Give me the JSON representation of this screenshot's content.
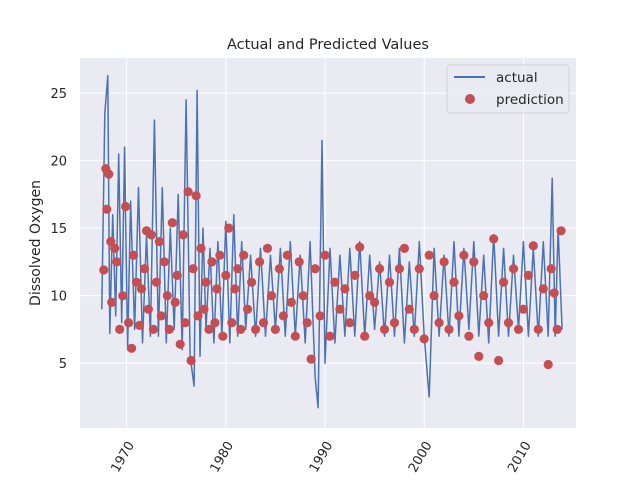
{
  "chart_data": {
    "type": "line",
    "title": "Actual and Predicted Values",
    "xlabel": "",
    "ylabel": "Dissolved Oxygen",
    "xlim": [
      1965.3,
      2015.3
    ],
    "ylim": [
      0.2,
      27.6
    ],
    "x_ticks": [
      1970,
      1980,
      1990,
      2000,
      2010
    ],
    "x_tick_labels": [
      "1970",
      "1980",
      "1990",
      "2000",
      "2010"
    ],
    "y_ticks": [
      5,
      10,
      15,
      20,
      25
    ],
    "y_tick_labels": [
      "5",
      "10",
      "15",
      "20",
      "25"
    ],
    "grid": true,
    "legend_position": "top-right",
    "series": [
      {
        "name": "actual",
        "kind": "line",
        "color": "#4c72b0",
        "x": [
          1967.5,
          1967.8,
          1968.1,
          1968.3,
          1968.6,
          1968.9,
          1969.2,
          1969.5,
          1969.8,
          1970.1,
          1970.4,
          1970.8,
          1971.2,
          1971.6,
          1972.0,
          1972.4,
          1972.8,
          1973.2,
          1973.6,
          1974.0,
          1974.4,
          1974.8,
          1975.2,
          1975.6,
          1976.0,
          1976.4,
          1976.8,
          1977.1,
          1977.4,
          1977.7,
          1978.0,
          1978.4,
          1978.8,
          1979.2,
          1979.6,
          1980.0,
          1980.4,
          1980.8,
          1981.2,
          1981.6,
          1982.0,
          1982.5,
          1983.0,
          1983.5,
          1984.0,
          1984.5,
          1985.0,
          1985.5,
          1986.0,
          1986.5,
          1987.0,
          1987.5,
          1988.0,
          1988.5,
          1989.0,
          1989.3,
          1989.7,
          1990.0,
          1990.5,
          1991.0,
          1991.5,
          1992.0,
          1992.5,
          1993.0,
          1993.5,
          1994.0,
          1994.5,
          1995.0,
          1995.5,
          1996.0,
          1996.5,
          1997.0,
          1997.5,
          1998.0,
          1998.5,
          1999.0,
          1999.5,
          2000.0,
          2000.5,
          2001.0,
          2001.5,
          2002.0,
          2002.5,
          2003.0,
          2003.5,
          2004.0,
          2004.5,
          2005.0,
          2005.5,
          2006.0,
          2006.5,
          2007.0,
          2007.5,
          2008.0,
          2008.5,
          2009.0,
          2009.5,
          2010.0,
          2010.5,
          2011.0,
          2011.5,
          2012.0,
          2012.5,
          2012.9,
          2013.2,
          2013.5,
          2013.9
        ],
        "y": [
          9.0,
          23.5,
          26.3,
          7.2,
          16.0,
          8.5,
          20.5,
          8.0,
          21.0,
          6.0,
          17.0,
          7.5,
          18.0,
          6.5,
          14.5,
          7.0,
          23.0,
          7.0,
          18.0,
          6.5,
          15.0,
          7.5,
          17.5,
          6.0,
          24.5,
          5.5,
          3.3,
          25.2,
          5.5,
          15.0,
          7.5,
          13.5,
          6.5,
          14.0,
          7.0,
          15.5,
          6.5,
          16.0,
          7.0,
          14.0,
          7.5,
          13.0,
          7.0,
          13.5,
          7.0,
          13.0,
          7.5,
          13.5,
          7.0,
          14.0,
          7.0,
          13.0,
          6.5,
          14.0,
          4.0,
          1.7,
          21.5,
          5.0,
          13.5,
          6.5,
          13.0,
          7.0,
          13.5,
          7.0,
          14.0,
          7.0,
          13.0,
          7.5,
          12.5,
          7.0,
          13.0,
          7.0,
          13.5,
          6.5,
          12.5,
          7.0,
          14.0,
          7.0,
          2.5,
          13.5,
          7.0,
          13.0,
          7.0,
          14.0,
          7.0,
          13.5,
          7.5,
          14.0,
          7.0,
          13.0,
          6.5,
          14.5,
          7.0,
          13.5,
          7.0,
          13.0,
          7.5,
          14.0,
          7.0,
          13.5,
          7.0,
          14.0,
          7.0,
          18.7,
          7.0,
          15.0,
          7.5
        ]
      },
      {
        "name": "prediction",
        "kind": "scatter",
        "color": "#c44e52",
        "x": [
          1967.7,
          1967.9,
          1968.0,
          1968.2,
          1968.4,
          1968.5,
          1968.8,
          1969.0,
          1969.3,
          1969.6,
          1969.9,
          1970.2,
          1970.5,
          1970.7,
          1971.0,
          1971.3,
          1971.5,
          1971.8,
          1972.0,
          1972.2,
          1972.5,
          1972.7,
          1973.0,
          1973.3,
          1973.5,
          1973.8,
          1974.1,
          1974.3,
          1974.6,
          1974.9,
          1975.1,
          1975.4,
          1975.7,
          1975.9,
          1976.2,
          1976.5,
          1976.7,
          1977.0,
          1977.2,
          1977.5,
          1977.8,
          1978.0,
          1978.3,
          1978.6,
          1978.9,
          1979.1,
          1979.4,
          1979.7,
          1980.0,
          1980.3,
          1980.6,
          1980.9,
          1981.2,
          1981.5,
          1981.8,
          1982.2,
          1982.6,
          1983.0,
          1983.4,
          1983.8,
          1984.2,
          1984.6,
          1985.0,
          1985.4,
          1985.8,
          1986.2,
          1986.6,
          1987.0,
          1987.4,
          1987.8,
          1988.2,
          1988.6,
          1989.0,
          1989.5,
          1990.0,
          1990.5,
          1991.0,
          1991.5,
          1992.0,
          1992.5,
          1993.0,
          1993.5,
          1994.0,
          1994.5,
          1995.0,
          1995.5,
          1996.0,
          1996.5,
          1997.0,
          1997.5,
          1998.0,
          1998.5,
          1999.0,
          1999.5,
          2000.0,
          2000.5,
          2001.0,
          2001.5,
          2002.0,
          2002.5,
          2003.0,
          2003.5,
          2004.0,
          2004.5,
          2005.0,
          2005.5,
          2006.0,
          2006.5,
          2007.0,
          2007.5,
          2008.0,
          2008.5,
          2009.0,
          2009.5,
          2010.0,
          2010.5,
          2011.0,
          2011.5,
          2012.0,
          2012.5,
          2012.8,
          2013.1,
          2013.4,
          2013.8
        ],
        "y": [
          11.9,
          19.4,
          16.4,
          19.0,
          14.0,
          9.5,
          13.5,
          12.5,
          7.5,
          10.0,
          16.6,
          8.0,
          6.1,
          13.0,
          11.0,
          7.8,
          10.5,
          12.0,
          14.8,
          9.0,
          14.5,
          7.5,
          11.0,
          14.0,
          8.5,
          12.5,
          10.0,
          7.5,
          15.4,
          9.5,
          11.5,
          6.4,
          14.5,
          8.0,
          17.7,
          5.2,
          12.0,
          17.4,
          8.5,
          13.5,
          9.0,
          11.0,
          7.5,
          12.5,
          8.0,
          10.5,
          13.0,
          7.0,
          11.5,
          15.0,
          8.0,
          10.5,
          12.0,
          7.5,
          13.0,
          9.0,
          11.0,
          7.5,
          12.5,
          8.0,
          13.5,
          10.0,
          7.5,
          12.0,
          8.5,
          13.0,
          9.5,
          7.0,
          12.5,
          10.0,
          8.0,
          5.3,
          12.0,
          8.5,
          13.0,
          7.0,
          11.0,
          9.0,
          10.5,
          8.0,
          11.5,
          13.6,
          7.0,
          10.0,
          9.5,
          12.0,
          7.5,
          11.0,
          8.0,
          12.0,
          13.5,
          9.0,
          7.5,
          12.0,
          6.8,
          13.0,
          10.0,
          8.0,
          12.5,
          7.5,
          11.0,
          8.5,
          13.0,
          7.0,
          12.5,
          5.5,
          10.0,
          8.0,
          14.2,
          5.2,
          11.0,
          8.0,
          12.0,
          7.5,
          9.0,
          11.5,
          13.7,
          7.5,
          10.5,
          4.9,
          12.0,
          10.2,
          7.5,
          14.8
        ]
      }
    ]
  }
}
